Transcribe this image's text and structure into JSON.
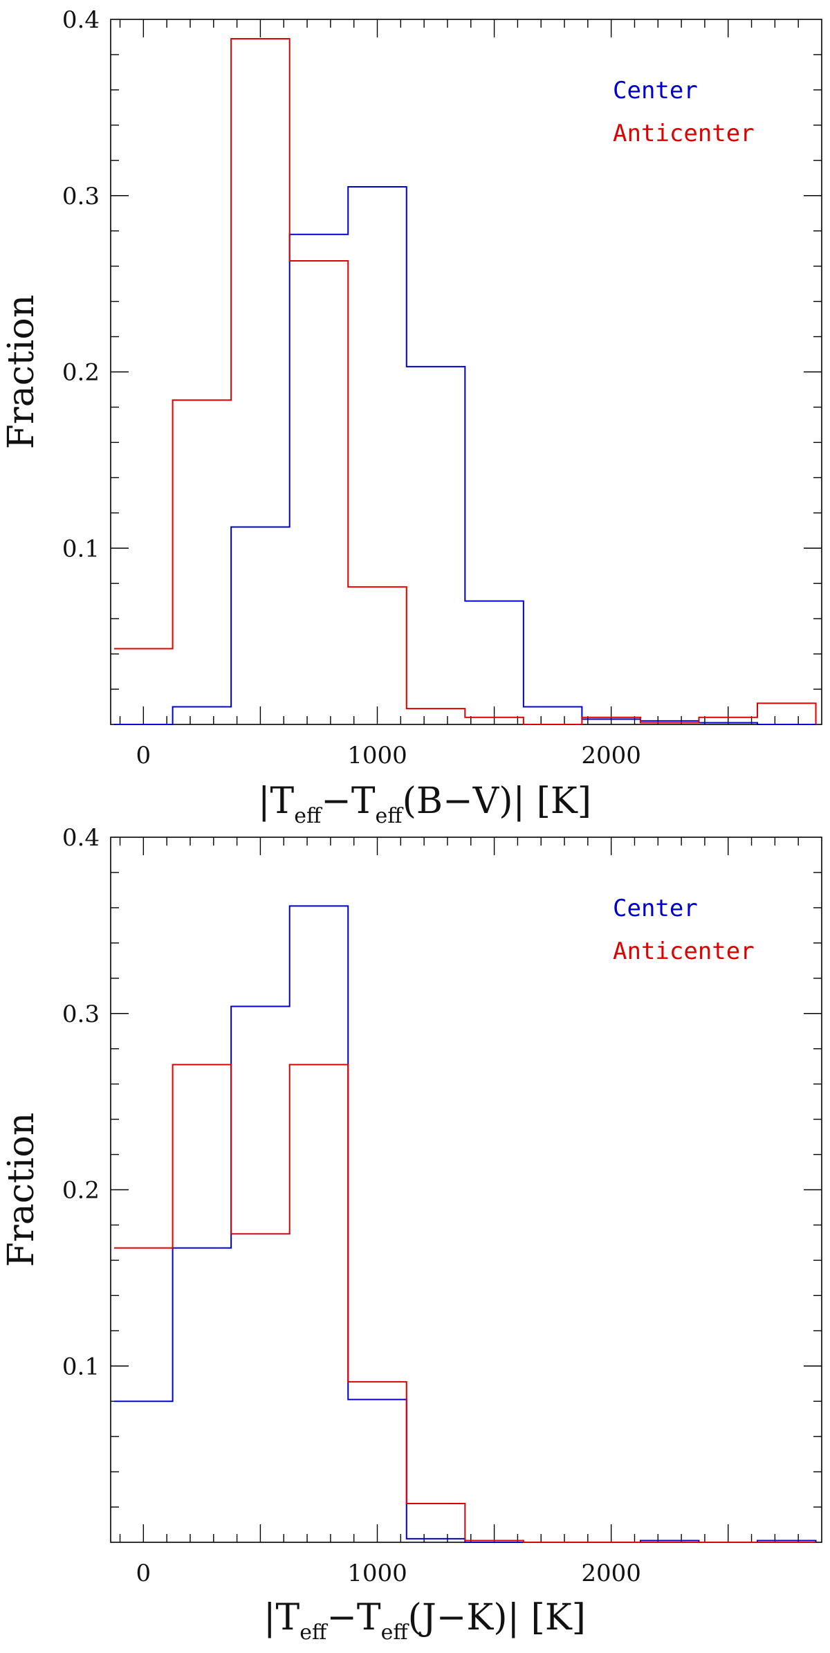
{
  "chart_data": [
    {
      "type": "histogram",
      "ylabel": "Fraction",
      "xlabel": {
        "prefix": "|T",
        "sub1": "eff",
        "mid": "−T",
        "sub2": "eff",
        "suffix": "(B−V)|  [K]"
      },
      "xlim": [
        -140,
        2900
      ],
      "ylim": [
        0,
        0.4
      ],
      "xticks": [
        0,
        1000,
        2000
      ],
      "yticks": [
        0.1,
        0.2,
        0.3,
        0.4
      ],
      "bin_edges": [
        -125,
        125,
        375,
        625,
        875,
        1125,
        1375,
        1625,
        1875,
        2125,
        2375,
        2625,
        2875
      ],
      "legend_position": "top-right",
      "series": [
        {
          "name": "Center",
          "color": "#0000cc",
          "values": [
            0,
            0.01,
            0.112,
            0.278,
            0.305,
            0.203,
            0.07,
            0.01,
            0.003,
            0.002,
            0.001,
            0,
            0
          ]
        },
        {
          "name": "Anticenter",
          "color": "#dd0000",
          "values": [
            0.043,
            0.184,
            0.389,
            0.263,
            0.078,
            0.009,
            0.004,
            0,
            0.004,
            0.001,
            0.004,
            0.012,
            0
          ]
        }
      ]
    },
    {
      "type": "histogram",
      "ylabel": "Fraction",
      "xlabel": {
        "prefix": "|T",
        "sub1": "eff",
        "mid": "−T",
        "sub2": "eff",
        "suffix": "(J−K)|  [K]"
      },
      "xlim": [
        -140,
        2900
      ],
      "ylim": [
        0,
        0.4
      ],
      "xticks": [
        0,
        1000,
        2000
      ],
      "yticks": [
        0.1,
        0.2,
        0.3,
        0.4
      ],
      "bin_edges": [
        -125,
        125,
        375,
        625,
        875,
        1125,
        1375,
        1625,
        1875,
        2125,
        2375,
        2625,
        2875
      ],
      "legend_position": "top-right",
      "series": [
        {
          "name": "Center",
          "color": "#0000cc",
          "values": [
            0.08,
            0.167,
            0.304,
            0.361,
            0.081,
            0.002,
            0,
            0,
            0,
            0.001,
            0,
            0.001,
            0
          ]
        },
        {
          "name": "Anticenter",
          "color": "#dd0000",
          "values": [
            0.167,
            0.271,
            0.175,
            0.271,
            0.091,
            0.022,
            0.001,
            0,
            0,
            0,
            0,
            0,
            0
          ]
        }
      ]
    }
  ]
}
